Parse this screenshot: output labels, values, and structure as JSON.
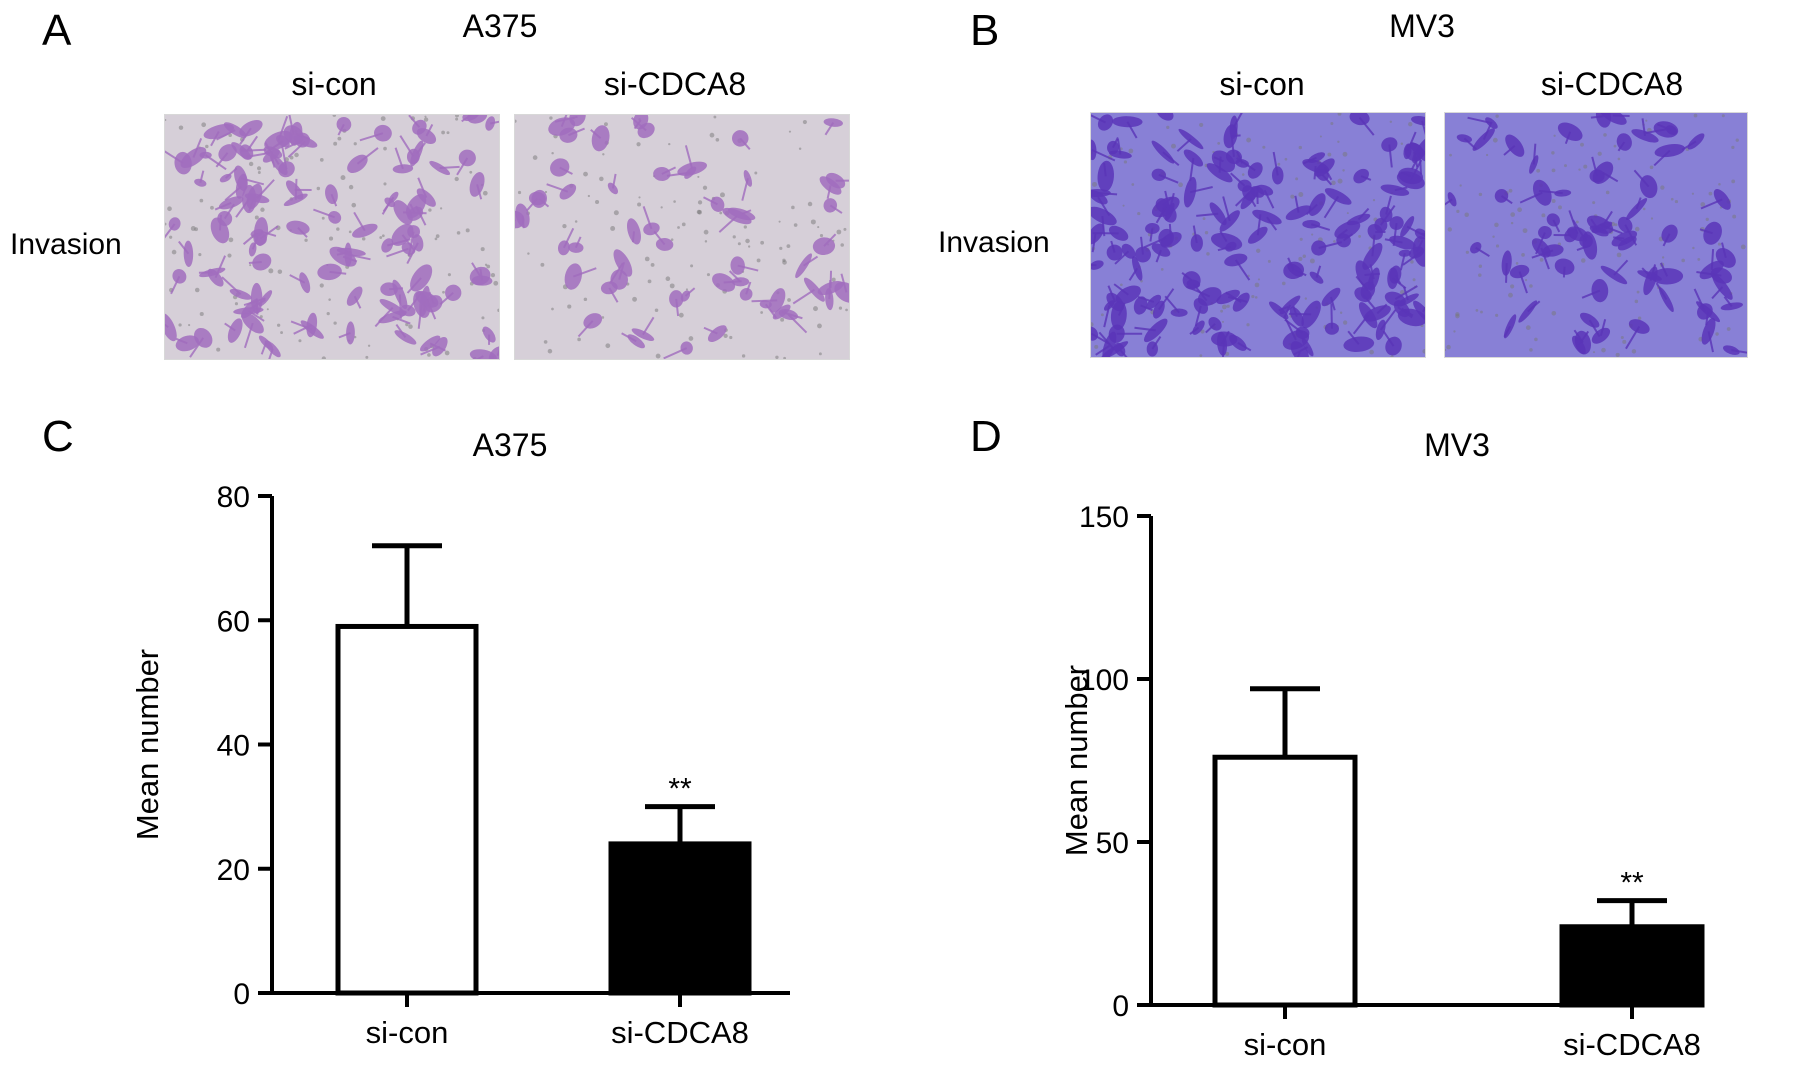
{
  "panels": {
    "A": {
      "letter": "A",
      "title": "A375",
      "row_label": "Invasion",
      "cols": [
        "si-con",
        "si-CDCA8"
      ]
    },
    "B": {
      "letter": "B",
      "title": "MV3",
      "row_label": "Invasion",
      "cols": [
        "si-con",
        "si-CDCA8"
      ]
    },
    "C": {
      "letter": "C"
    },
    "D": {
      "letter": "D"
    }
  },
  "micrograph_colors": {
    "A375": {
      "bg": "#d6cfd8",
      "cell": "#a16dbe"
    },
    "MV3": {
      "bg": "#8880d6",
      "cell": "#5a35b8"
    }
  },
  "chart_data": [
    {
      "type": "bar",
      "title": "A375",
      "ylabel": "Mean number",
      "xlabel": "",
      "categories": [
        "si-con",
        "si-CDCA8"
      ],
      "values": [
        59,
        24
      ],
      "errors": [
        13,
        6
      ],
      "annotations": [
        "",
        "**"
      ],
      "fills": [
        "#ffffff",
        "#000000"
      ],
      "ylim": [
        0,
        80
      ],
      "yticks": [
        0,
        20,
        40,
        60,
        80
      ],
      "grid": false
    },
    {
      "type": "bar",
      "title": "MV3",
      "ylabel": "Mean number",
      "xlabel": "",
      "categories": [
        "si-con",
        "si-CDCA8"
      ],
      "values": [
        76,
        24
      ],
      "errors": [
        21,
        8
      ],
      "annotations": [
        "",
        "**"
      ],
      "fills": [
        "#ffffff",
        "#000000"
      ],
      "ylim": [
        0,
        150
      ],
      "yticks": [
        0,
        50,
        100,
        150
      ],
      "grid": false
    }
  ]
}
